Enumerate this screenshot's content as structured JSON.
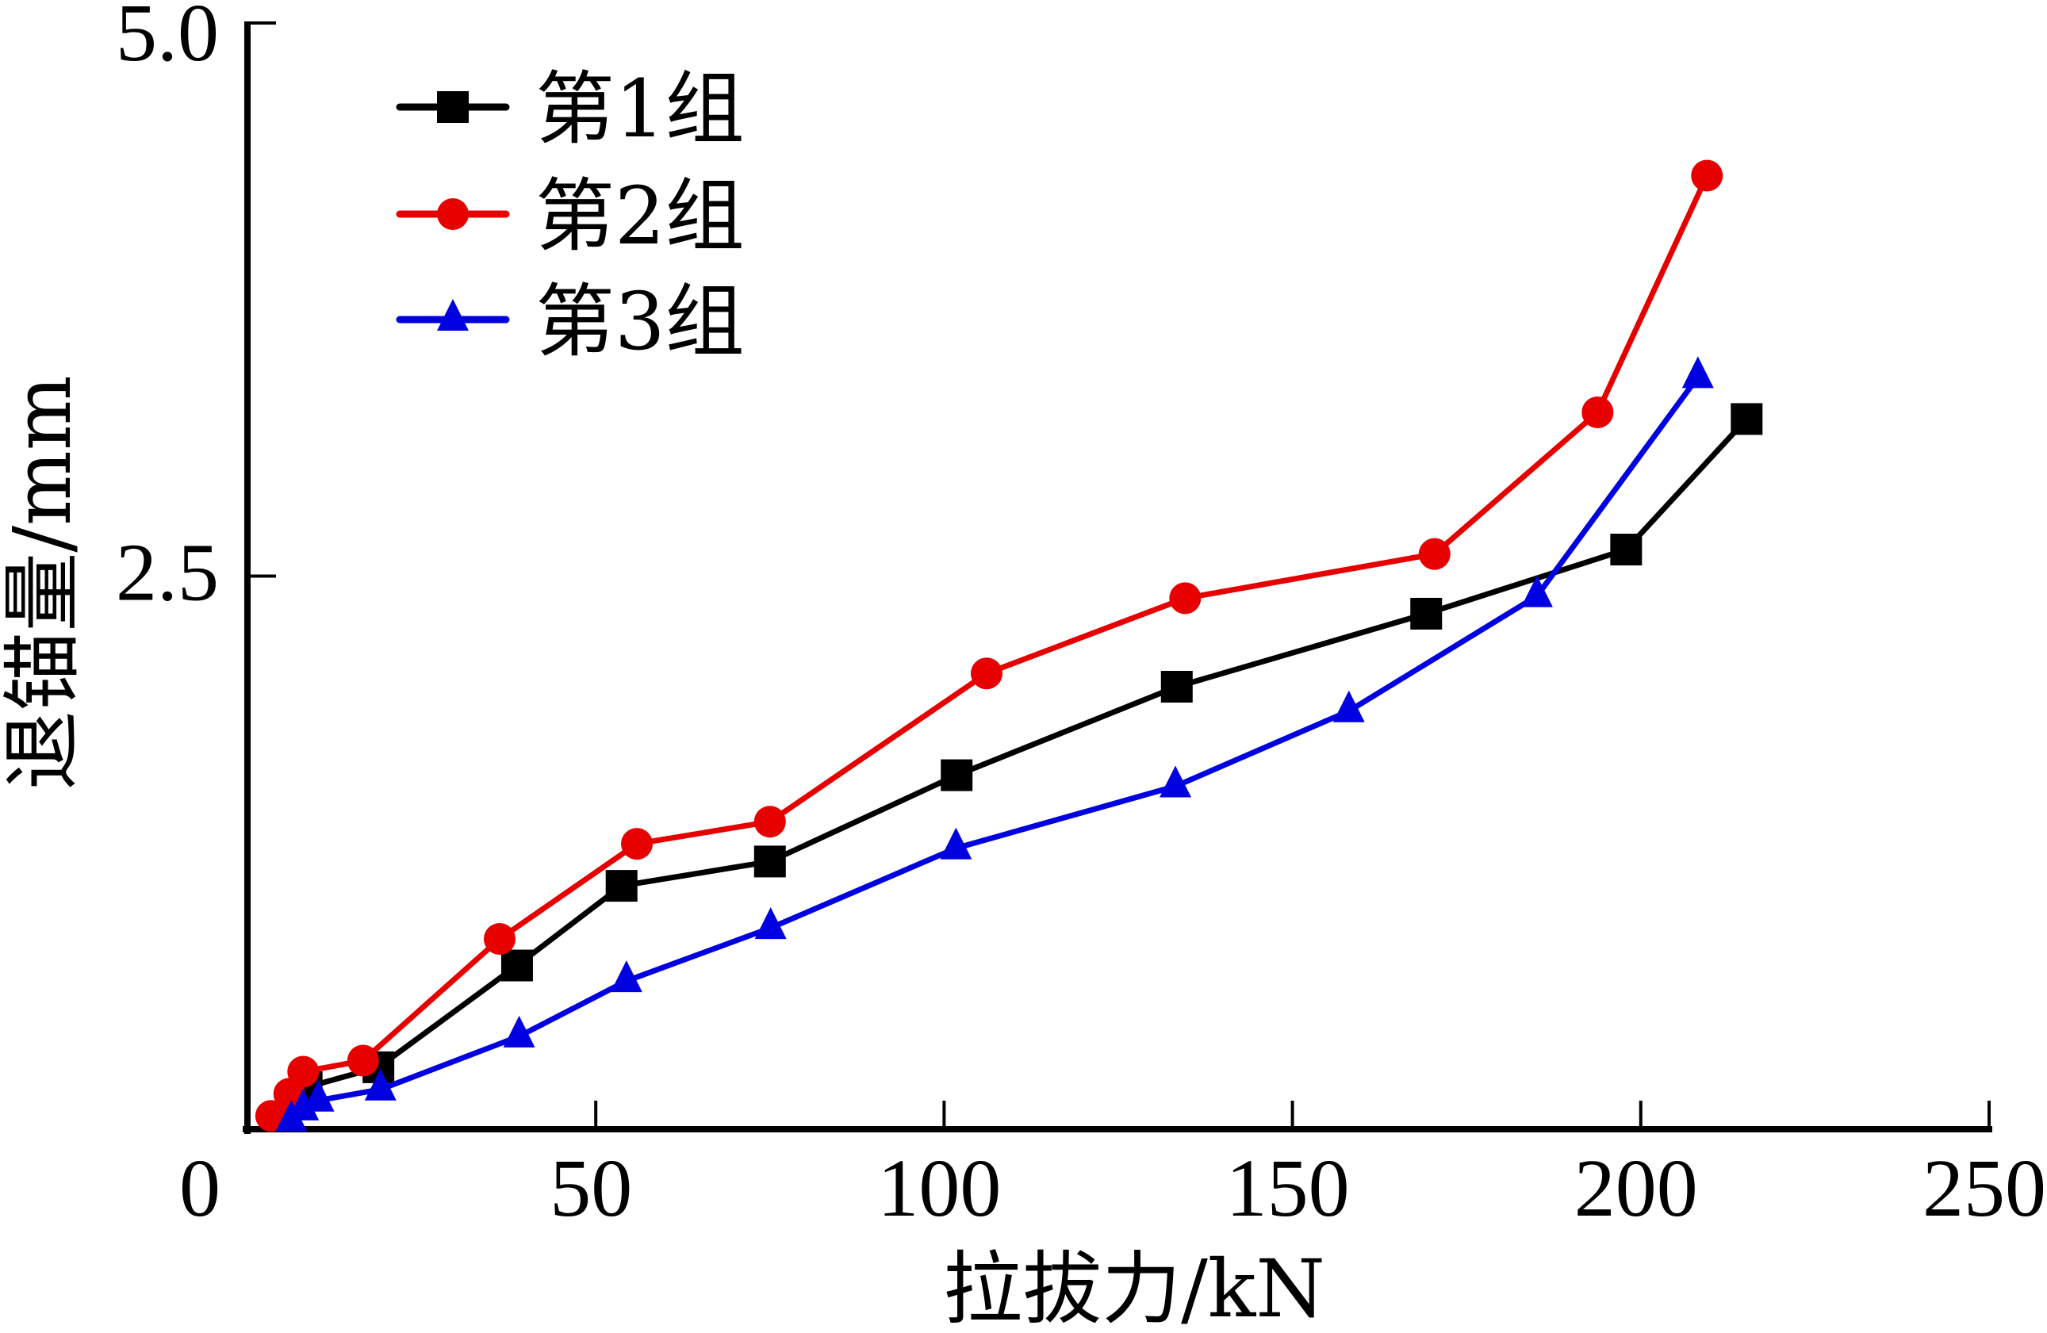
{
  "chart_data": {
    "type": "line",
    "title": "",
    "xlabel": "拉拔力/kN",
    "ylabel": "退锚量/mm",
    "xlim": [
      0,
      250
    ],
    "ylim": [
      0,
      5.0
    ],
    "x_ticks": [
      {
        "value": 0,
        "label": "0"
      },
      {
        "value": 50,
        "label": "50"
      },
      {
        "value": 100,
        "label": "100"
      },
      {
        "value": 150,
        "label": "150"
      },
      {
        "value": 200,
        "label": "200"
      },
      {
        "value": 250,
        "label": "250"
      }
    ],
    "y_ticks": [
      {
        "value": 2.5,
        "label": "2.5"
      },
      {
        "value": 5.0,
        "label": "5.0"
      }
    ],
    "grid": false,
    "legend_position": "top-left",
    "series": [
      {
        "name": "第1组",
        "color": "#000000",
        "marker": "square",
        "x": [
          6.5,
          8.5,
          18.8,
          38.7,
          53.7,
          75.0,
          101.8,
          133.4,
          169.2,
          197.9,
          215.2
        ],
        "y": [
          0.12,
          0.19,
          0.28,
          0.74,
          1.1,
          1.21,
          1.6,
          2.0,
          2.33,
          2.62,
          3.21
        ]
      },
      {
        "name": "第2组",
        "color": "#e60000",
        "marker": "circle",
        "x": [
          3.4,
          6.0,
          8.0,
          16.6,
          36.2,
          55.9,
          75.0,
          106.1,
          134.6,
          170.4,
          193.8,
          209.5
        ],
        "y": [
          0.06,
          0.16,
          0.26,
          0.31,
          0.86,
          1.29,
          1.39,
          2.06,
          2.4,
          2.6,
          3.24,
          4.31
        ]
      },
      {
        "name": "第3组",
        "color": "#0000e0",
        "marker": "triangle",
        "x": [
          6.3,
          8.0,
          10.2,
          19.1,
          39.0,
          54.4,
          75.1,
          101.7,
          133.2,
          158.1,
          185.1,
          208.2
        ],
        "y": [
          0.04,
          0.09,
          0.13,
          0.18,
          0.42,
          0.67,
          0.91,
          1.27,
          1.55,
          1.89,
          2.41,
          3.4
        ]
      }
    ]
  }
}
